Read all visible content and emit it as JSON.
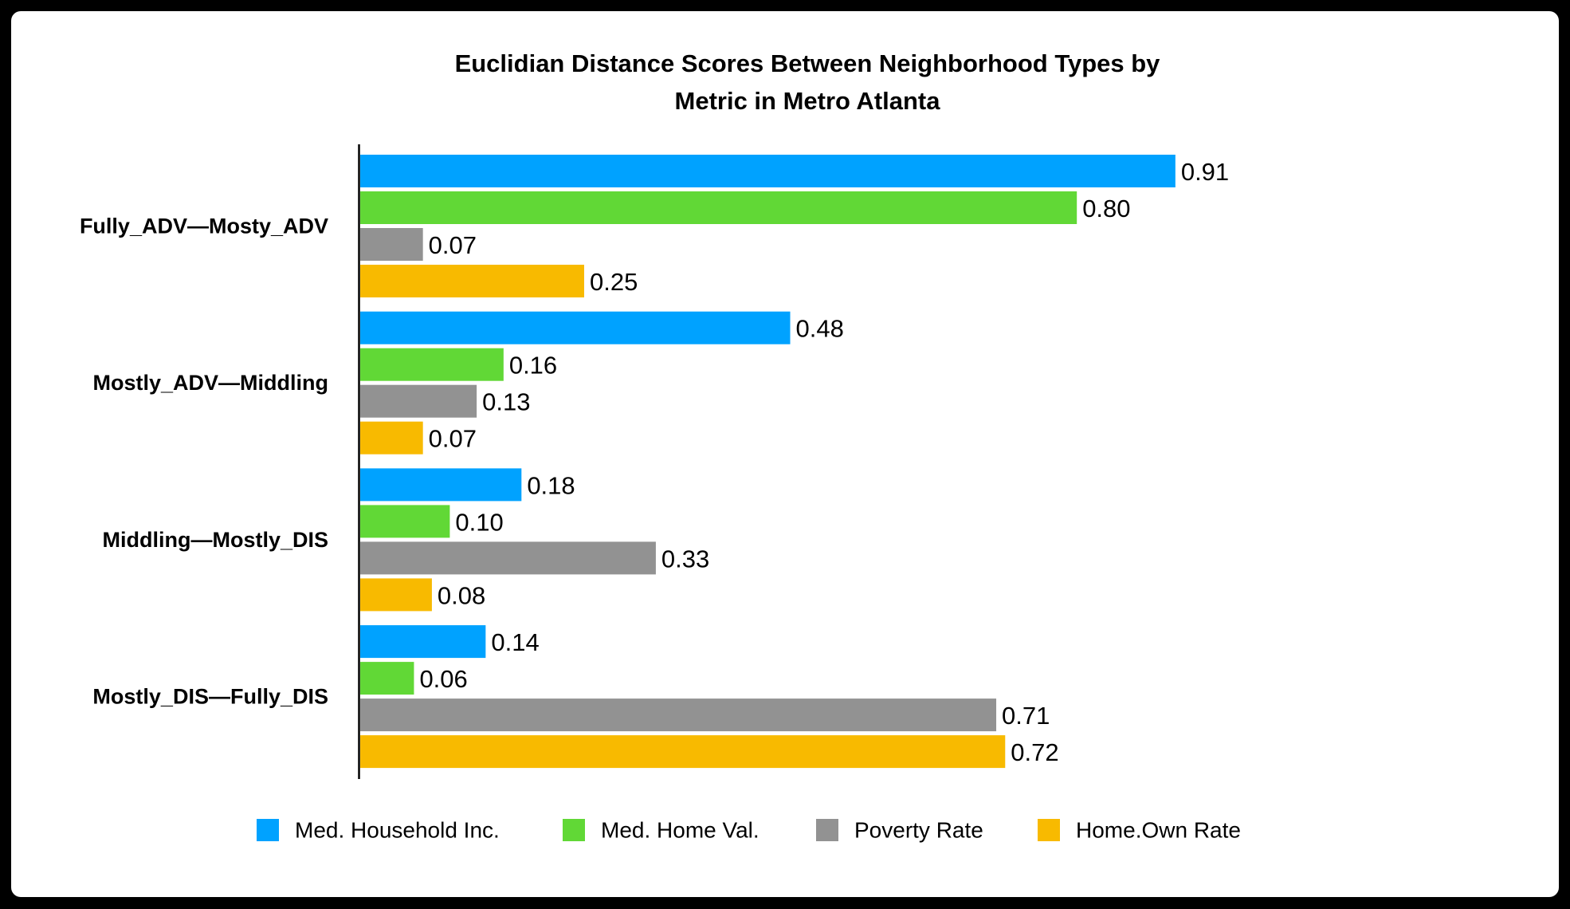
{
  "chart_data": {
    "type": "bar",
    "orientation": "horizontal",
    "title_lines": [
      "Euclidian Distance Scores Between Neighborhood Types by",
      "Metric in Metro Atlanta"
    ],
    "categories": [
      "Fully_ADV—Mosty_ADV",
      "Mostly_ADV—Middling",
      "Middling—Mostly_DIS",
      "Mostly_DIS—Fully_DIS"
    ],
    "series": [
      {
        "name": "Med. Household Inc.",
        "color": "#00A2FF",
        "values": [
          0.91,
          0.48,
          0.18,
          0.14
        ],
        "labels": [
          "0.91",
          "0.48",
          "0.18",
          "0.14"
        ]
      },
      {
        "name": "Med. Home Val.",
        "color": "#61D836",
        "values": [
          0.8,
          0.16,
          0.1,
          0.06
        ],
        "labels": [
          "0.80",
          "0.16",
          "0.10",
          "0.06"
        ]
      },
      {
        "name": "Poverty Rate",
        "color": "#929292",
        "values": [
          0.07,
          0.13,
          0.33,
          0.71
        ],
        "labels": [
          "0.07",
          "0.13",
          "0.33",
          "0.71"
        ]
      },
      {
        "name": "Home.Own Rate",
        "color": "#F8BA00",
        "values": [
          0.25,
          0.07,
          0.08,
          0.72
        ],
        "labels": [
          "0.25",
          "0.07",
          "0.08",
          "0.72"
        ]
      }
    ],
    "xlabel": "",
    "ylabel": "",
    "xlim": [
      0,
      1.34
    ],
    "grid": false,
    "legend_position": "bottom"
  }
}
